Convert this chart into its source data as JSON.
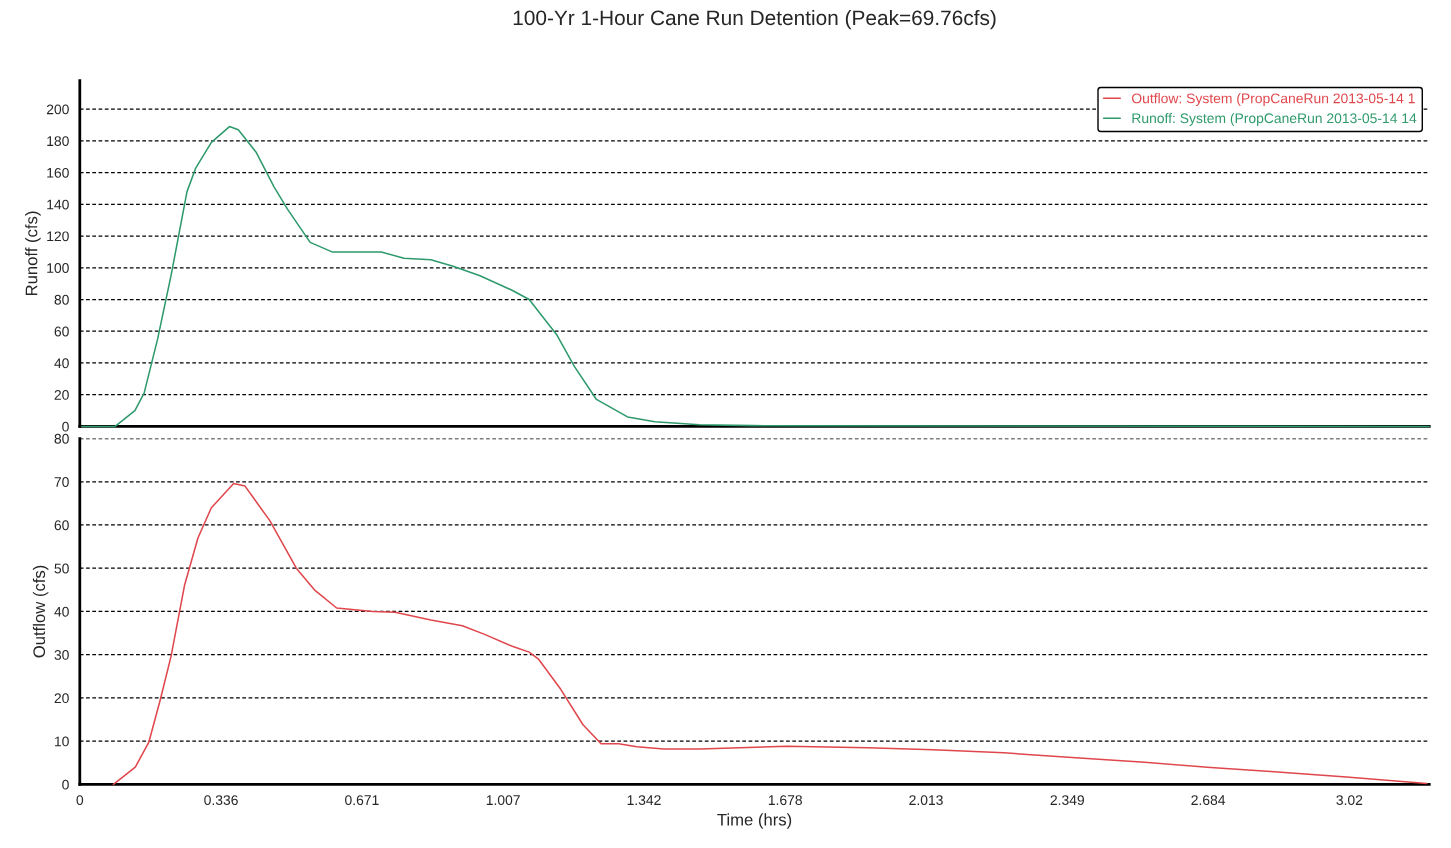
{
  "chart_data": [
    {
      "type": "line",
      "title": "100-Yr 1-Hour Cane Run Detention (Peak=69.76cfs)",
      "ylabel": "Runoff (cfs)",
      "xlim": [
        0,
        3.21
      ],
      "xticks": [
        0,
        0.336,
        0.671,
        1.007,
        1.342,
        1.678,
        2.013,
        2.349,
        2.684,
        3.02
      ],
      "ylim": [
        0,
        218
      ],
      "yticks": [
        0,
        20,
        40,
        60,
        80,
        100,
        120,
        140,
        160,
        180,
        200
      ],
      "tick_labels": "y",
      "grid": "y",
      "legend": "top right",
      "marker": "none",
      "line_style": "solid",
      "series": [
        {
          "name": "Runoff: System (PropCaneRun 2013-05-14 14",
          "color": "#2e9a6c",
          "x": [
            0.005,
            0.084,
            0.131,
            0.153,
            0.185,
            0.217,
            0.255,
            0.276,
            0.313,
            0.356,
            0.377,
            0.419,
            0.462,
            0.494,
            0.548,
            0.6,
            0.665,
            0.717,
            0.771,
            0.835,
            0.888,
            0.952,
            1.027,
            1.069,
            1.134,
            1.176,
            1.229,
            1.303,
            1.368,
            1.474,
            1.6,
            3.21
          ],
          "values": [
            0,
            0,
            10,
            21,
            55,
            95,
            148,
            163,
            179,
            189,
            187,
            173,
            151,
            137,
            116,
            110,
            110,
            110,
            106,
            105,
            101,
            95,
            86,
            80,
            58,
            38,
            17,
            6,
            3,
            1,
            0.5,
            0
          ]
        }
      ]
    },
    {
      "type": "line",
      "xlabel": "Time (hrs)",
      "ylabel": "Outflow (cfs)",
      "xlim": [
        0,
        3.21
      ],
      "xticks": [
        0,
        0.336,
        0.671,
        1.007,
        1.342,
        1.678,
        2.013,
        2.349,
        2.684,
        3.02
      ],
      "ylim": [
        0,
        80
      ],
      "yticks": [
        0,
        10,
        20,
        30,
        40,
        50,
        60,
        70,
        80
      ],
      "grid": "y",
      "marker": "none",
      "line_style": "solid",
      "series": [
        {
          "name": "Outflow: System (PropCaneRun 2013-05-14 1",
          "color": "#e0474c",
          "x": [
            0.08,
            0.132,
            0.164,
            0.191,
            0.217,
            0.249,
            0.281,
            0.313,
            0.366,
            0.393,
            0.452,
            0.515,
            0.558,
            0.611,
            0.697,
            0.75,
            0.835,
            0.91,
            0.963,
            1.027,
            1.069,
            1.091,
            1.144,
            1.197,
            1.24,
            1.282,
            1.325,
            1.389,
            1.474,
            1.682,
            1.874,
            2.03,
            2.198,
            2.378,
            2.533,
            2.69,
            2.833,
            3.013,
            3.204
          ],
          "values": [
            0,
            4,
            9.7,
            19.4,
            29.6,
            46,
            57,
            64,
            69.6,
            69,
            61,
            50,
            45,
            40.8,
            40,
            39.8,
            38,
            36.7,
            34.7,
            32,
            30.6,
            29,
            22,
            13.8,
            9.4,
            9.4,
            8.7,
            8.2,
            8.2,
            8.8,
            8.5,
            8,
            7.3,
            6.1,
            5.1,
            3.9,
            3,
            1.7,
            0.2
          ]
        }
      ]
    }
  ]
}
